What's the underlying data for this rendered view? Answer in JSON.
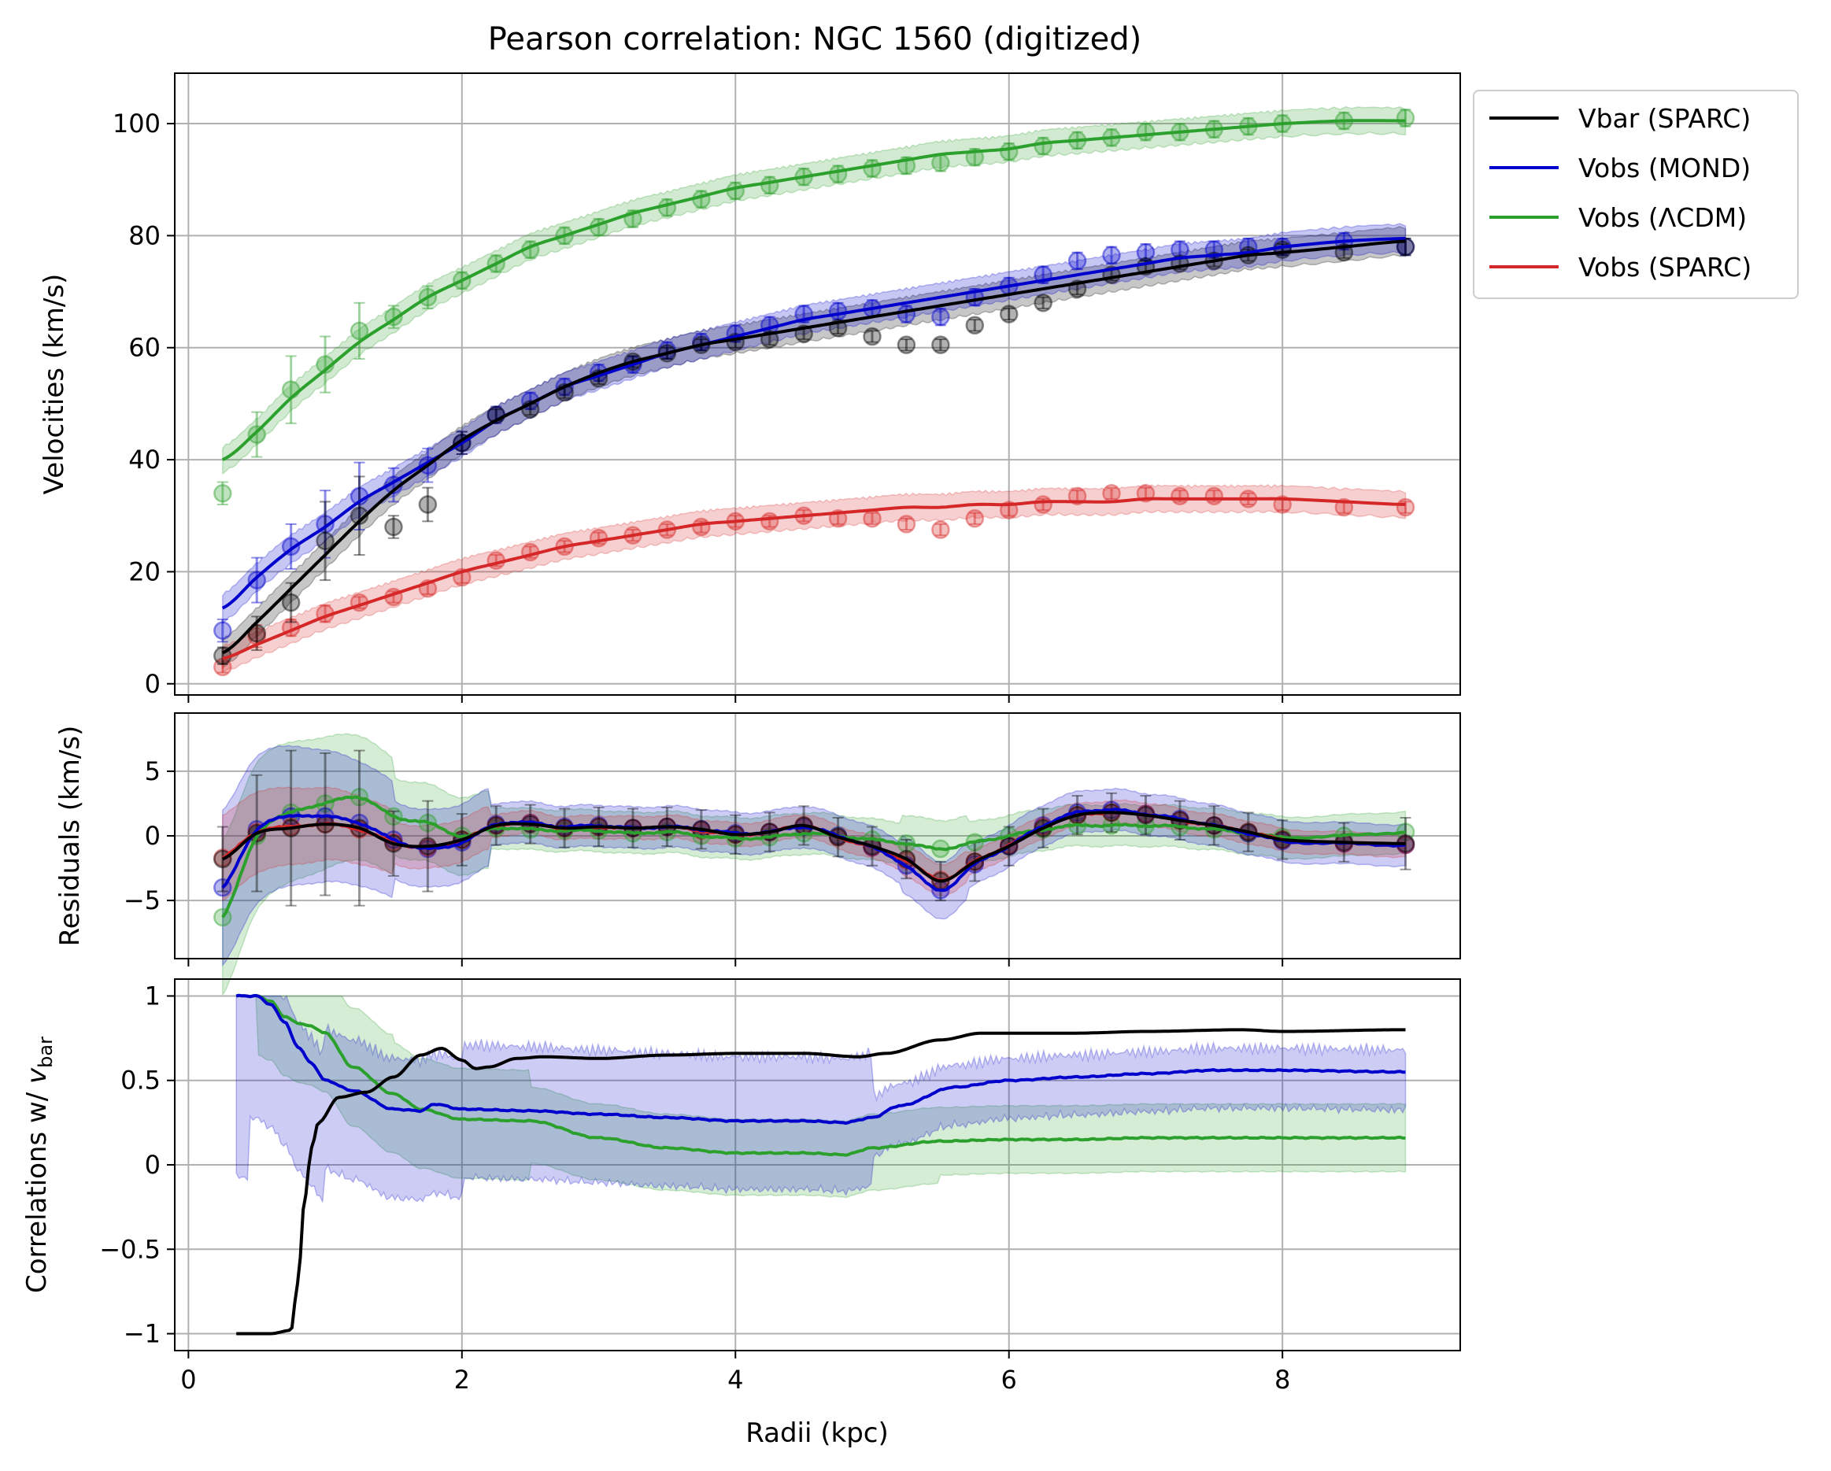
{
  "title": "Pearson correlation: NGC 1560 (digitized)",
  "colors": {
    "vbar_sparc": "#000000",
    "vobs_mond": "#0000cc",
    "vobs_lcdm": "#2ca02c",
    "vobs_sparc": "#d62728",
    "grid": "#b0b0b0"
  },
  "legend": {
    "placement": "outside-right-top",
    "items": [
      {
        "key": "vbar_sparc",
        "label": "Vbar (SPARC)"
      },
      {
        "key": "vobs_mond",
        "label": "Vobs (MOND)"
      },
      {
        "key": "vobs_lcdm",
        "label": "Vobs (ΛCDM)"
      },
      {
        "key": "vobs_sparc",
        "label": "Vobs (SPARC)"
      }
    ]
  },
  "chart_data": [
    {
      "type": "line",
      "panel": "velocities",
      "ylabel": "Velocities (km/s)",
      "xlim": [
        -0.1,
        9.3
      ],
      "ylim": [
        -2,
        109
      ],
      "xticks": [
        0,
        2,
        4,
        6,
        8
      ],
      "yticks": [
        0,
        20,
        40,
        60,
        80,
        100
      ],
      "grid": true,
      "x": [
        0.25,
        0.5,
        0.75,
        1.0,
        1.25,
        1.5,
        1.75,
        2.0,
        2.25,
        2.5,
        2.75,
        3.0,
        3.25,
        3.5,
        3.75,
        4.0,
        4.25,
        4.5,
        4.75,
        5.0,
        5.25,
        5.5,
        5.75,
        6.0,
        6.25,
        6.5,
        6.75,
        7.0,
        7.25,
        7.5,
        7.75,
        8.0,
        8.45,
        8.9
      ],
      "series": [
        {
          "key": "vbar_sparc",
          "name": "Vbar (SPARC)",
          "points": [
            5,
            9,
            14.5,
            25.5,
            30,
            28,
            32,
            43,
            48,
            49,
            52,
            54.5,
            57.5,
            59,
            60.5,
            61,
            61.5,
            62.5,
            63.5,
            62,
            60.5,
            60.5,
            64,
            66,
            68,
            70.5,
            73,
            74.5,
            75,
            75.5,
            76.5,
            77.5,
            77,
            78
          ],
          "line": [
            5.5,
            11,
            17,
            23,
            29,
            34.5,
            39,
            43.5,
            47,
            50,
            53,
            55.5,
            57.5,
            59,
            60.5,
            61.5,
            62.5,
            63.5,
            64.5,
            65.5,
            66.5,
            67.5,
            68.5,
            69.5,
            70.5,
            71.5,
            72.5,
            73.5,
            74.5,
            75.5,
            76.5,
            77,
            78,
            79
          ]
        },
        {
          "key": "vobs_mond",
          "name": "Vobs (MOND)",
          "points": [
            9.5,
            18.5,
            24.5,
            28.5,
            33.5,
            35.5,
            39,
            43,
            48,
            50.5,
            53,
            55.5,
            57,
            59.5,
            61,
            62.5,
            64,
            66,
            66.5,
            67,
            66,
            65.5,
            69,
            71,
            73,
            75.5,
            76.5,
            77,
            77.5,
            77.5,
            78,
            78,
            79,
            78
          ],
          "line": [
            13.5,
            19,
            24,
            28,
            32.5,
            36,
            39.5,
            43,
            47,
            50,
            53,
            55,
            57,
            59,
            60.5,
            62,
            63.5,
            65,
            66,
            67,
            68,
            69,
            70,
            71,
            72,
            73,
            74,
            75,
            76,
            76.5,
            77,
            78,
            79,
            79.5
          ]
        },
        {
          "key": "vobs_lcdm",
          "name": "Vobs (ΛCDM)",
          "points": [
            34,
            44.5,
            52.5,
            57,
            63,
            65.5,
            69,
            72,
            75,
            77.5,
            80,
            81.5,
            83,
            85,
            86.5,
            88,
            89,
            90.5,
            91,
            92,
            92.5,
            93,
            94,
            95,
            96,
            97,
            97.5,
            98.5,
            98.5,
            99,
            99.5,
            100,
            100.5,
            101
          ],
          "line": [
            40,
            45,
            51,
            56,
            61,
            65,
            69,
            72,
            75,
            78,
            80,
            82,
            84,
            85.5,
            87,
            88.5,
            89.5,
            90.5,
            91.5,
            92.5,
            93.5,
            94.5,
            95,
            95.5,
            96.5,
            97,
            97.5,
            98,
            98.5,
            99,
            99.5,
            100,
            100.5,
            100.5
          ]
        },
        {
          "key": "vobs_sparc",
          "name": "Vobs (SPARC)",
          "points": [
            3,
            8.5,
            10,
            12.5,
            14.5,
            15.5,
            17,
            19,
            22,
            23.5,
            24.5,
            26,
            26.5,
            27.5,
            28,
            29,
            29,
            30,
            29.5,
            29.5,
            28.5,
            27.5,
            29.5,
            31,
            32,
            33.5,
            34,
            34,
            33.5,
            33.5,
            33,
            32,
            31.5,
            31.5
          ],
          "line": [
            4.5,
            7,
            9.5,
            12,
            14,
            16,
            18,
            20,
            21.5,
            23,
            24.5,
            25.5,
            26.5,
            27.5,
            28.5,
            29,
            29.5,
            30,
            30.5,
            31,
            31.5,
            31.5,
            32,
            32,
            32.5,
            32.5,
            32.5,
            33,
            33,
            33,
            33,
            33,
            32.5,
            32
          ]
        }
      ]
    },
    {
      "type": "line",
      "panel": "residuals",
      "ylabel": "Residuals (km/s)",
      "xlim": [
        -0.1,
        9.3
      ],
      "ylim": [
        -9.5,
        9.5
      ],
      "yticks": [
        -5,
        0,
        5
      ],
      "grid": true,
      "x": [
        0.25,
        0.5,
        0.75,
        1.0,
        1.25,
        1.5,
        1.75,
        2.0,
        2.25,
        2.5,
        2.75,
        3.0,
        3.25,
        3.5,
        3.75,
        4.0,
        4.25,
        4.5,
        4.75,
        5.0,
        5.25,
        5.5,
        5.75,
        6.0,
        6.25,
        6.5,
        6.75,
        7.0,
        7.25,
        7.5,
        7.75,
        8.0,
        8.45,
        8.9
      ],
      "series": [
        {
          "key": "vbar_sparc",
          "name": "Vbar (SPARC)",
          "values": [
            -1.8,
            0.2,
            0.6,
            0.9,
            0.6,
            -0.6,
            -0.8,
            -0.3,
            0.8,
            0.9,
            0.6,
            0.7,
            0.6,
            0.7,
            0.5,
            0.1,
            0.3,
            0.8,
            -0.1,
            -0.8,
            -1.8,
            -3.5,
            -2.0,
            -0.8,
            0.6,
            1.6,
            1.8,
            1.6,
            1.2,
            0.8,
            0.3,
            -0.3,
            -0.5,
            -0.6
          ]
        },
        {
          "key": "vobs_mond",
          "name": "Vobs (MOND)",
          "values": [
            -4.0,
            0.5,
            1.5,
            1.5,
            1.0,
            -0.3,
            -1.0,
            -0.5,
            0.9,
            1.0,
            0.7,
            0.8,
            0.6,
            0.7,
            0.5,
            0.2,
            0.3,
            0.7,
            0.0,
            -0.9,
            -2.3,
            -4.2,
            -2.2,
            -0.8,
            0.8,
            1.8,
            2.0,
            1.7,
            1.3,
            0.8,
            0.2,
            -0.4,
            -0.6,
            -0.7
          ]
        },
        {
          "key": "vobs_lcdm",
          "name": "Vobs (ΛCDM)",
          "values": [
            -6.3,
            0.0,
            1.8,
            2.5,
            3.0,
            1.5,
            1.0,
            0.0,
            0.6,
            0.5,
            0.4,
            0.4,
            0.2,
            0.3,
            0.0,
            -0.2,
            -0.1,
            0.2,
            0.0,
            -0.3,
            -0.6,
            -1.0,
            -0.5,
            0.0,
            0.5,
            0.8,
            0.8,
            0.8,
            0.7,
            0.5,
            0.2,
            -0.1,
            0.0,
            0.3
          ]
        },
        {
          "key": "vobs_sparc",
          "name": "Vobs (SPARC)",
          "values": [
            -1.7,
            0.3,
            0.7,
            0.9,
            0.5,
            -0.5,
            -0.9,
            -0.3,
            0.8,
            1.0,
            0.6,
            0.7,
            0.6,
            0.7,
            0.4,
            0.1,
            0.3,
            0.8,
            -0.1,
            -0.9,
            -1.9,
            -3.4,
            -2.0,
            -0.7,
            0.7,
            1.6,
            1.8,
            1.7,
            1.2,
            0.8,
            0.3,
            -0.3,
            -0.6,
            -0.7
          ]
        }
      ]
    },
    {
      "type": "line",
      "panel": "correlations",
      "ylabel": "Correlations w/ v_bar",
      "xlabel": "Radii (kpc)",
      "xlim": [
        -0.1,
        9.3
      ],
      "ylim": [
        -1.1,
        1.1
      ],
      "yticks": [
        -1.0,
        -0.5,
        0.0,
        0.5,
        1.0
      ],
      "grid": true,
      "series": [
        {
          "key": "vbar_sparc",
          "name": "Vbar (SPARC)",
          "x": [
            0.35,
            0.6,
            0.75,
            0.8,
            0.85,
            0.9,
            0.95,
            1.1,
            1.3,
            1.5,
            1.7,
            1.85,
            2.0,
            2.1,
            2.2,
            2.4,
            2.6,
            3.0,
            3.5,
            4.0,
            4.5,
            4.9,
            5.1,
            5.5,
            5.8,
            6.5,
            7.0,
            7.7,
            8.0,
            8.9
          ],
          "y": [
            -1.0,
            -1.0,
            -0.98,
            -0.7,
            -0.2,
            0.1,
            0.25,
            0.4,
            0.43,
            0.52,
            0.65,
            0.69,
            0.62,
            0.57,
            0.58,
            0.63,
            0.64,
            0.63,
            0.65,
            0.66,
            0.66,
            0.64,
            0.66,
            0.74,
            0.78,
            0.78,
            0.79,
            0.8,
            0.79,
            0.8
          ]
        },
        {
          "key": "vobs_mond",
          "name": "Vobs (MOND)",
          "x": [
            0.35,
            0.5,
            0.6,
            0.7,
            0.8,
            0.9,
            1.0,
            1.2,
            1.5,
            1.7,
            1.8,
            2.0,
            2.5,
            3.0,
            3.5,
            4.0,
            4.5,
            4.8,
            5.0,
            5.2,
            5.6,
            6.0,
            6.5,
            7.0,
            7.5,
            8.0,
            8.9
          ],
          "y": [
            1.0,
            1.0,
            0.95,
            0.85,
            0.7,
            0.6,
            0.5,
            0.44,
            0.33,
            0.32,
            0.36,
            0.33,
            0.32,
            0.3,
            0.28,
            0.26,
            0.26,
            0.25,
            0.28,
            0.35,
            0.46,
            0.5,
            0.52,
            0.54,
            0.56,
            0.56,
            0.55
          ]
        },
        {
          "key": "vobs_lcdm",
          "name": "Vobs (ΛCDM)",
          "x": [
            0.35,
            0.5,
            0.6,
            0.7,
            0.8,
            0.9,
            1.0,
            1.2,
            1.5,
            1.7,
            2.0,
            2.5,
            3.0,
            3.5,
            4.0,
            4.5,
            4.8,
            5.0,
            5.5,
            6.0,
            6.5,
            7.0,
            7.5,
            8.0,
            8.9
          ],
          "y": [
            1.0,
            1.0,
            0.97,
            0.88,
            0.84,
            0.82,
            0.78,
            0.58,
            0.42,
            0.33,
            0.27,
            0.26,
            0.16,
            0.1,
            0.07,
            0.07,
            0.06,
            0.1,
            0.14,
            0.15,
            0.15,
            0.16,
            0.16,
            0.16,
            0.16
          ]
        }
      ]
    }
  ]
}
